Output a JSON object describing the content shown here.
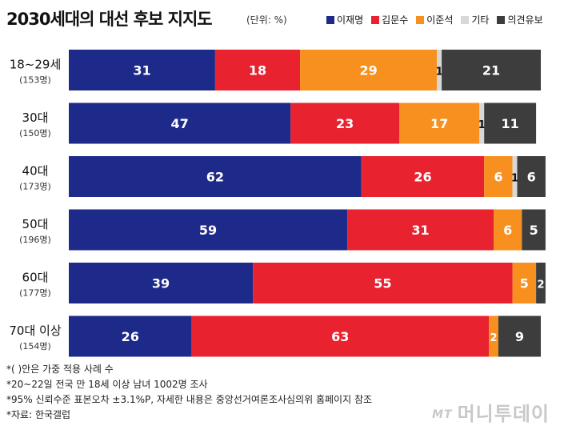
{
  "title": "2030세대의 대선 후보 지지도",
  "unit": "(단위: %)",
  "chart_data": {
    "type": "bar",
    "orientation": "horizontal-stacked",
    "categories": [
      "18~29세",
      "30대",
      "40대",
      "50대",
      "60대",
      "70대 이상"
    ],
    "sample_sizes": [
      "(153명)",
      "(150명)",
      "(173명)",
      "(196명)",
      "(177명)",
      "(154명)"
    ],
    "series": [
      {
        "name": "이재명",
        "color": "#1e2a8a",
        "values": [
          31,
          47,
          62,
          59,
          39,
          26
        ]
      },
      {
        "name": "김문수",
        "color": "#e8222e",
        "values": [
          18,
          23,
          26,
          31,
          55,
          63
        ]
      },
      {
        "name": "이준석",
        "color": "#f7901e",
        "values": [
          29,
          17,
          6,
          6,
          5,
          2
        ]
      },
      {
        "name": "기타",
        "color": "#d8d8d8",
        "values": [
          1,
          1,
          1,
          null,
          null,
          null
        ]
      },
      {
        "name": "의견유보",
        "color": "#3d3d3d",
        "values": [
          21,
          11,
          6,
          5,
          2,
          9
        ]
      }
    ],
    "xlim": [
      0,
      100
    ],
    "legend_position": "top-right",
    "grid": false
  },
  "notes": [
    "*( )안은 가중 적용 사례 수",
    "*20~22일 전국 만 18세 이상 남녀 1002명 조사",
    "*95% 신뢰수준 표본오차 ±3.1%P, 자세한 내용은 중앙선거여론조사심의위 홈페이지 참조",
    "*자료: 한국갤럽"
  ],
  "watermark": {
    "mark": "MT",
    "name": "머니투데이"
  }
}
